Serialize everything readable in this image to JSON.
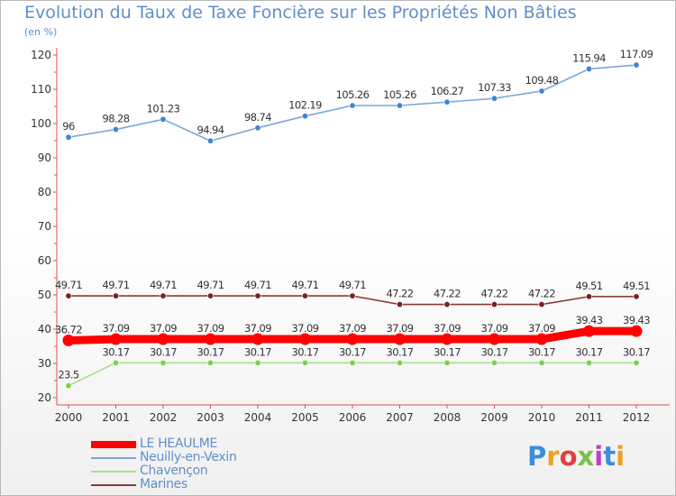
{
  "title": "Evolution du Taux de Taxe Foncière sur les Propriétés Non Bâties",
  "unit_label": "(en %)",
  "logo": {
    "text": "Proxiti",
    "colors": [
      "#3a8fd8",
      "#f0a020",
      "#e83e3e",
      "#7cc04c",
      "#c040c0",
      "#3a8fd8",
      "#f0a020"
    ]
  },
  "chart_data": {
    "type": "line",
    "title": "Evolution du Taux de Taxe Foncière sur les Propriétés Non Bâties",
    "ylabel": "(en %)",
    "xlabel": "",
    "x": [
      "2000",
      "2001",
      "2002",
      "2003",
      "2004",
      "2005",
      "2006",
      "2007",
      "2008",
      "2009",
      "2010",
      "2011",
      "2012"
    ],
    "ylim": [
      20,
      120
    ],
    "yticks": [
      20,
      30,
      40,
      50,
      60,
      70,
      80,
      90,
      100,
      110,
      120
    ],
    "grid": false,
    "legend_position": "bottom-left",
    "series": [
      {
        "name": "LE HEAULME",
        "color": "#ff0000",
        "marker": "#ff0000",
        "thick": true,
        "values": [
          36.72,
          37.09,
          37.09,
          37.09,
          37.09,
          37.09,
          37.09,
          37.09,
          37.09,
          37.09,
          37.09,
          39.43,
          39.43
        ],
        "labels": [
          "36.72",
          "37.09",
          "37.09",
          "37.09",
          "37.09",
          "37.09",
          "37.09",
          "37.09",
          "37.09",
          "37.09",
          "37.09",
          "39.43",
          "39.43"
        ]
      },
      {
        "name": "Neuilly-en-Vexin",
        "color": "#7aa8d8",
        "marker": "#3f86d0",
        "thick": false,
        "values": [
          96,
          98.28,
          101.23,
          94.94,
          98.74,
          102.19,
          105.26,
          105.26,
          106.27,
          107.33,
          109.48,
          115.94,
          117.09
        ],
        "labels": [
          "96",
          "98.28",
          "101.23",
          "94.94",
          "98.74",
          "102.19",
          "105.26",
          "105.26",
          "106.27",
          "107.33",
          "109.48",
          "115.94",
          "117.09"
        ]
      },
      {
        "name": "Chavençon",
        "color": "#a6e08a",
        "marker": "#7cd048",
        "thick": false,
        "values": [
          23.5,
          30.17,
          30.17,
          30.17,
          30.17,
          30.17,
          30.17,
          30.17,
          30.17,
          30.17,
          30.17,
          30.17,
          30.17
        ],
        "labels": [
          "23.5",
          "30.17",
          "30.17",
          "30.17",
          "30.17",
          "30.17",
          "30.17",
          "30.17",
          "30.17",
          "30.17",
          "30.17",
          "30.17",
          "30.17"
        ]
      },
      {
        "name": "Marines",
        "color": "#8b3a3a",
        "marker": "#7a2020",
        "thick": false,
        "values": [
          49.71,
          49.71,
          49.71,
          49.71,
          49.71,
          49.71,
          49.71,
          47.22,
          47.22,
          47.22,
          47.22,
          49.51,
          49.51
        ],
        "labels": [
          "49.71",
          "49.71",
          "49.71",
          "49.71",
          "49.71",
          "49.71",
          "49.71",
          "47.22",
          "47.22",
          "47.22",
          "47.22",
          "49.51",
          "49.51"
        ]
      }
    ]
  }
}
